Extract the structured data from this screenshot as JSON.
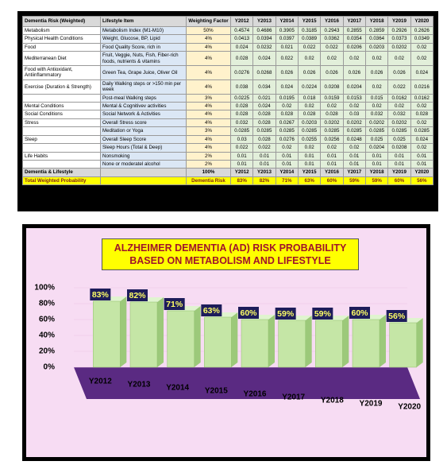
{
  "table": {
    "header": [
      "Dementia Risk (Weighted)",
      "Lifestyle Item",
      "Weighting Factor",
      "Y2012",
      "Y2013",
      "Y2014",
      "Y2015",
      "Y2016",
      "Y2017",
      "Y2018",
      "Y2019",
      "Y2020"
    ],
    "rows": [
      [
        "Metabolism",
        "Metabolism Index (M1-M10)",
        "50%",
        "0.4574",
        "0.4686",
        "0.3905",
        "0.3185",
        "0.2943",
        "0.2855",
        "0.2859",
        "0.2926",
        "0.2626"
      ],
      [
        "Physical Health Conditions",
        "Weight, Glucose, BP, Lipid",
        "4%",
        "0.0413",
        "0.0394",
        "0.0397",
        "0.0389",
        "0.0362",
        "0.0354",
        "0.0364",
        "0.0373",
        "0.0349"
      ],
      [
        "Food",
        "Food Quality Score, rich in",
        "4%",
        "0.024",
        "0.0232",
        "0.021",
        "0.022",
        "0.022",
        "0.0206",
        "0.0203",
        "0.0202",
        "0.02"
      ],
      [
        "Mediterranean Diet",
        "Fruit, Veggie, Nuts, Fish, Fiber-rich foods, nutrients & vitamins",
        "4%",
        "0.028",
        "0.024",
        "0.022",
        "0.02",
        "0.02",
        "0.02",
        "0.02",
        "0.02",
        "0.02"
      ],
      [
        "Food with Antioxidant, Antiinflammatory",
        "Green Tea, Grape Juice, Oliver Oil",
        "4%",
        "0.0276",
        "0.0268",
        "0.026",
        "0.026",
        "0.026",
        "0.026",
        "0.026",
        "0.026",
        "0.024"
      ],
      [
        "Exercise (Duration & Strength)",
        "Daily Walking steps or >150 min per week",
        "4%",
        "0.038",
        "0.034",
        "0.024",
        "0.0224",
        "0.0208",
        "0.0204",
        "0.02",
        "0.022",
        "0.0216"
      ],
      [
        null,
        "Post-meal Walking steps",
        "3%",
        "0.0225",
        "0.021",
        "0.0195",
        "0.018",
        "0.0159",
        "0.0153",
        "0.015",
        "0.0162",
        "0.0162"
      ],
      [
        "Mental Conditions",
        "Mental & Cognitivev activities",
        "4%",
        "0.028",
        "0.024",
        "0.02",
        "0.02",
        "0.02",
        "0.02",
        "0.02",
        "0.02",
        "0.02"
      ],
      [
        "Social Conditions",
        "Social Network & Activities",
        "4%",
        "0.028",
        "0.028",
        "0.028",
        "0.028",
        "0.028",
        "0.03",
        "0.032",
        "0.032",
        "0.028"
      ],
      [
        "Stress",
        "Overall Stress score",
        "4%",
        "0.032",
        "0.028",
        "0.0267",
        "0.0203",
        "0.0202",
        "0.0202",
        "0.0202",
        "0.0202",
        "0.02"
      ],
      [
        null,
        "Meditation or Yoga",
        "3%",
        "0.0285",
        "0.0285",
        "0.0285",
        "0.0285",
        "0.0285",
        "0.0285",
        "0.0285",
        "0.0285",
        "0.0285"
      ],
      [
        "Sleep",
        "Overall Sleep Score",
        "4%",
        "0.03",
        "0.028",
        "0.0276",
        "0.0255",
        "0.0256",
        "0.0248",
        "0.025",
        "0.025",
        "0.024"
      ],
      [
        null,
        "Sleep Hours (Total & Deep)",
        "4%",
        "0.022",
        "0.022",
        "0.02",
        "0.02",
        "0.02",
        "0.02",
        "0.0204",
        "0.0208",
        "0.02"
      ],
      [
        "Life Habits",
        "Nonsmoking",
        "2%",
        "0.01",
        "0.01",
        "0.01",
        "0.01",
        "0.01",
        "0.01",
        "0.01",
        "0.01",
        "0.01"
      ],
      [
        null,
        "None or moderatel alcohol",
        "2%",
        "0.01",
        "0.01",
        "0.01",
        "0.01",
        "0.01",
        "0.01",
        "0.01",
        "0.01",
        "0.01"
      ]
    ],
    "footer": [
      [
        "Dementia & Lifestyle",
        null,
        "100%",
        "Y2012",
        "Y2013",
        "Y2014",
        "Y2015",
        "Y2016",
        "Y2017",
        "Y2018",
        "Y2019",
        "Y2020"
      ],
      [
        "Total Weighted Probability",
        null,
        "Dementia Risk",
        "83%",
        "82%",
        "71%",
        "63%",
        "60%",
        "59%",
        "59%",
        "60%",
        "56%"
      ]
    ]
  },
  "chart_data": {
    "type": "bar3d",
    "title": "ALZHEIMER DEMENTIA (AD) RISK PROBABILITY BASED ON METABOLISM AND LIFESTYLE",
    "categories": [
      "Y2012",
      "Y2013",
      "Y2014",
      "Y2015",
      "Y2016",
      "Y2017",
      "Y2018",
      "Y2019",
      "Y2020"
    ],
    "values": [
      83,
      82,
      71,
      63,
      60,
      59,
      59,
      60,
      56
    ],
    "value_labels": [
      "83%",
      "82%",
      "71%",
      "63%",
      "60%",
      "59%",
      "59%",
      "60%",
      "56%"
    ],
    "color": "#c5e6a6",
    "ylim": [
      0,
      100
    ],
    "yticks": [
      {
        "value": 0,
        "label": "0%"
      },
      {
        "value": 20,
        "label": "20%"
      },
      {
        "value": 40,
        "label": "40%"
      },
      {
        "value": 60,
        "label": "60%"
      },
      {
        "value": 80,
        "label": "80%"
      },
      {
        "value": 100,
        "label": "100%"
      }
    ]
  }
}
